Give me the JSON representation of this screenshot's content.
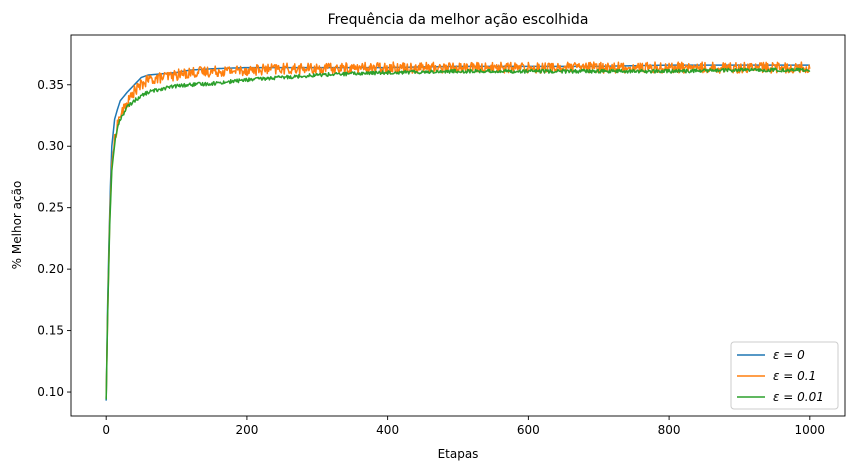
{
  "chart_data": {
    "type": "line",
    "title": "Frequência da melhor ação escolhida",
    "xlabel": "Etapas",
    "ylabel": "% Melhor ação",
    "xlim": [
      -50,
      1050
    ],
    "ylim": [
      0.0805,
      0.3905
    ],
    "xticks": [
      0,
      200,
      400,
      600,
      800,
      1000
    ],
    "yticks": [
      0.1,
      0.15,
      0.2,
      0.25,
      0.3,
      0.35
    ],
    "xtick_labels": [
      "0",
      "200",
      "400",
      "600",
      "800",
      "1000"
    ],
    "ytick_labels": [
      "0.10",
      "0.15",
      "0.20",
      "0.25",
      "0.30",
      "0.35"
    ],
    "grid": false,
    "legend_position": "lower-right",
    "series": [
      {
        "name": "ε = 0",
        "color": "#1f77b4",
        "x": [
          0,
          2,
          5,
          8,
          12,
          16,
          20,
          30,
          40,
          50,
          60,
          80,
          100,
          120,
          150,
          200,
          250,
          300,
          400,
          500,
          600,
          700,
          800,
          900,
          1000
        ],
        "y": [
          0.093,
          0.17,
          0.25,
          0.3,
          0.322,
          0.33,
          0.337,
          0.344,
          0.35,
          0.356,
          0.358,
          0.359,
          0.36,
          0.362,
          0.363,
          0.364,
          0.364,
          0.364,
          0.364,
          0.365,
          0.365,
          0.365,
          0.366,
          0.366,
          0.366
        ]
      },
      {
        "name": "ε = 0.1",
        "color": "#ff7f0e",
        "x": [
          0,
          2,
          5,
          8,
          12,
          16,
          20,
          30,
          40,
          50,
          60,
          80,
          100,
          120,
          150,
          200,
          250,
          300,
          400,
          500,
          600,
          700,
          800,
          900,
          1000
        ],
        "y": [
          0.095,
          0.16,
          0.24,
          0.285,
          0.305,
          0.318,
          0.325,
          0.335,
          0.345,
          0.35,
          0.354,
          0.356,
          0.358,
          0.36,
          0.361,
          0.362,
          0.363,
          0.363,
          0.364,
          0.364,
          0.364,
          0.364,
          0.364,
          0.364,
          0.364
        ],
        "noise": 0.0045
      },
      {
        "name": "ε = 0.01",
        "color": "#2ca02c",
        "x": [
          0,
          2,
          5,
          8,
          12,
          16,
          20,
          30,
          40,
          50,
          60,
          80,
          100,
          120,
          150,
          200,
          250,
          300,
          400,
          500,
          600,
          700,
          800,
          900,
          1000
        ],
        "y": [
          0.094,
          0.16,
          0.235,
          0.28,
          0.302,
          0.315,
          0.322,
          0.332,
          0.337,
          0.341,
          0.344,
          0.347,
          0.349,
          0.35,
          0.351,
          0.354,
          0.356,
          0.358,
          0.36,
          0.361,
          0.361,
          0.361,
          0.361,
          0.362,
          0.362
        ],
        "noise": 0.0015
      }
    ]
  }
}
